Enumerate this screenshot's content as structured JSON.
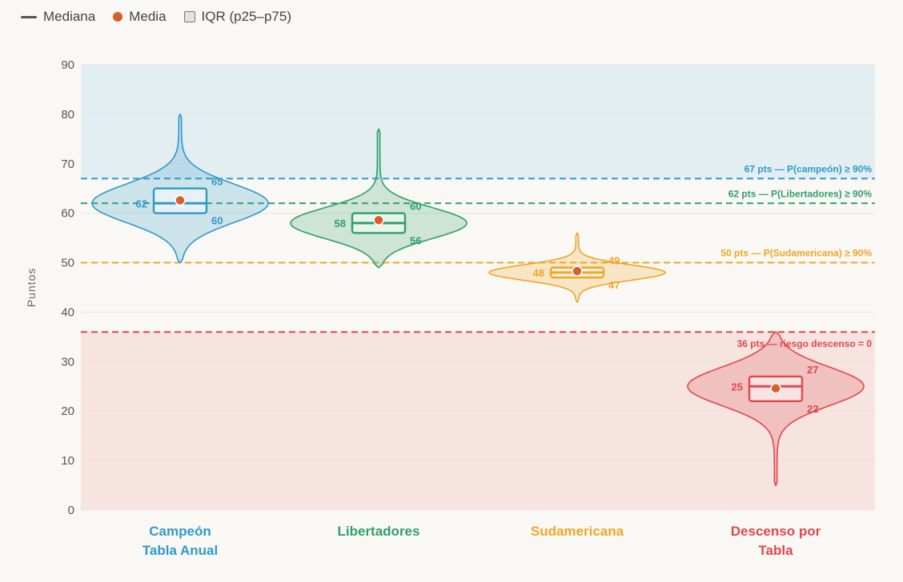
{
  "legend": {
    "median": "Mediana",
    "mean": "Media",
    "iqr": "IQR (p25–p75)",
    "mean_color": "#d95f2b"
  },
  "chart_data": {
    "type": "violin",
    "ylabel": "Puntos",
    "ylim": [
      0,
      90
    ],
    "yticks": [
      0,
      10,
      20,
      30,
      40,
      50,
      60,
      70,
      80,
      90
    ],
    "grid": true,
    "legend_position": "top-left",
    "bands": [
      {
        "from": 67,
        "to": 90,
        "color": "#e3eef3"
      },
      {
        "from": 0,
        "to": 36,
        "color": "#f7e3df"
      }
    ],
    "categories": [
      {
        "name": "Campeón Tabla Anual",
        "lines": [
          "Campeón",
          "Tabla Anual"
        ],
        "color": "#2e9ac9",
        "min": 50,
        "max": 80,
        "p25": 60,
        "median": 62,
        "p75": 65,
        "mean": 62.6,
        "label_median": "62",
        "label_p75": "65",
        "label_p25": "60"
      },
      {
        "name": "Libertadores",
        "lines": [
          "Libertadores"
        ],
        "color": "#2f9e6e",
        "min": 49,
        "max": 77,
        "p25": 56,
        "median": 58,
        "p75": 60,
        "mean": 58.6,
        "label_median": "58",
        "label_p75": "60",
        "label_p25": "56"
      },
      {
        "name": "Sudamericana",
        "lines": [
          "Sudamericana"
        ],
        "color": "#f0a524",
        "min": 42,
        "max": 56,
        "p25": 47,
        "median": 48,
        "p75": 49,
        "mean": 48.3,
        "label_median": "48",
        "label_p75": "49",
        "label_p25": "47"
      },
      {
        "name": "Descenso por Tabla",
        "lines": [
          "Descenso por",
          "Tabla"
        ],
        "color": "#e0474c",
        "min": 5,
        "max": 36,
        "p25": 22,
        "median": 25,
        "p75": 27,
        "mean": 24.6,
        "label_median": "25",
        "label_p75": "27",
        "label_p25": "22"
      }
    ],
    "thresholds": [
      {
        "value": 67,
        "label": "67 pts — P(campeón) ≥ 90%",
        "color": "#2e9ac9"
      },
      {
        "value": 62,
        "label": "62 pts — P(Libertadores) ≥ 90%",
        "color": "#2f9e6e"
      },
      {
        "value": 50,
        "label": "50 pts — P(Sudamericana) ≥ 90%",
        "color": "#f0a524"
      },
      {
        "value": 36,
        "label": "36 pts — riesgo descenso = 0",
        "color": "#e0474c"
      }
    ]
  }
}
